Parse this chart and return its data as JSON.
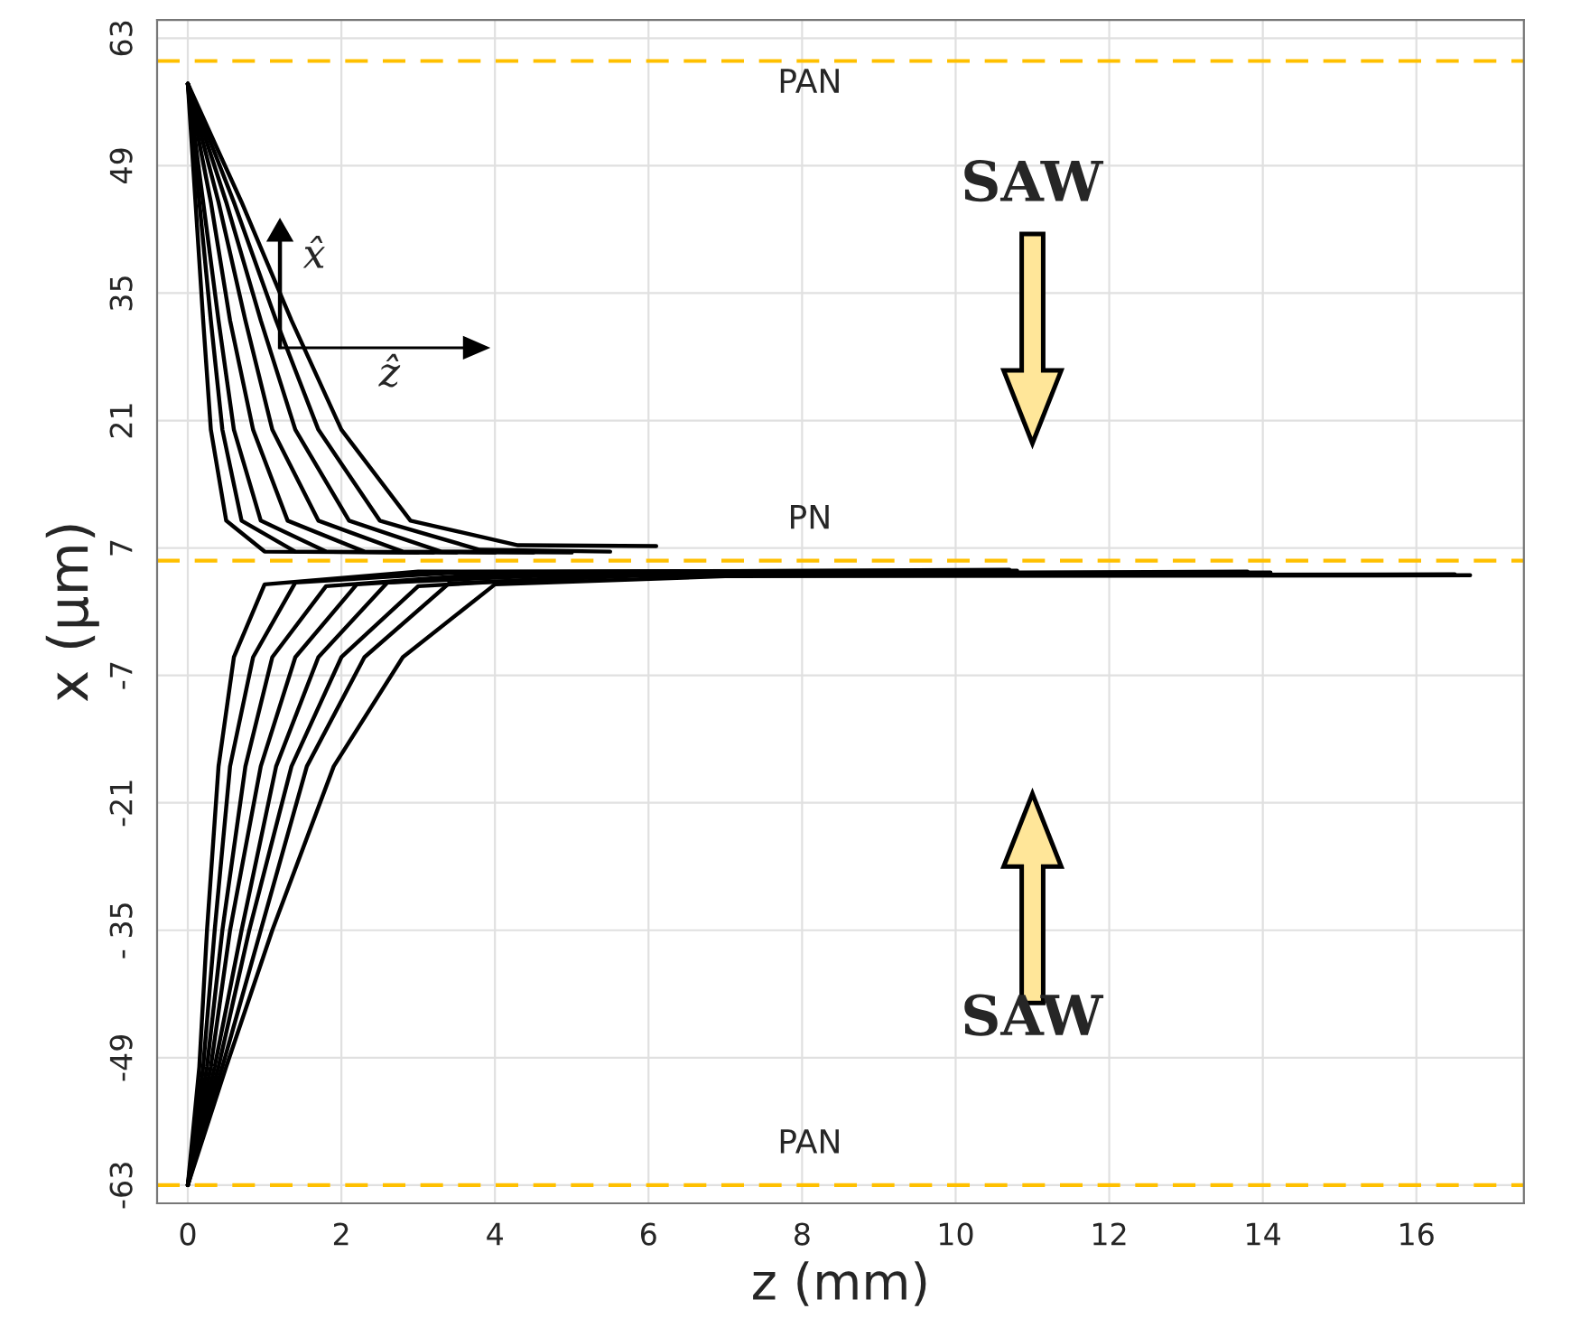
{
  "chart_data": {
    "type": "line",
    "xlabel": "z (mm)",
    "ylabel": "x (μm)",
    "xlim": [
      -0.4,
      17.4
    ],
    "ylim": [
      -65,
      65
    ],
    "xticks": [
      0,
      2,
      4,
      6,
      8,
      10,
      12,
      14,
      16
    ],
    "yticks": [
      -63,
      -49,
      {
        "value": -35,
        "label": "- 35"
      },
      -21,
      -7,
      7,
      21,
      35,
      49,
      63
    ],
    "grid": true,
    "legend": false,
    "line_style": "solid",
    "marker": "none",
    "ref_lines": [
      {
        "axis": "y",
        "value": 60.5,
        "label": "PAN",
        "color": "#ffc000",
        "line_style": "dashed"
      },
      {
        "axis": "y",
        "value": 5.6,
        "label": "PN",
        "color": "#ffc000",
        "line_style": "dashed"
      },
      {
        "axis": "y",
        "value": -63,
        "label": "PAN",
        "color": "#ffc000",
        "line_style": "dashed"
      }
    ],
    "annotations": [
      "SAW",
      "SAW",
      "x̂",
      "ẑ"
    ],
    "series": [
      {
        "color": "#000000",
        "x": [
          0,
          0.1,
          0.2,
          0.3,
          0.5,
          1.0,
          3.0
        ],
        "values": [
          58,
          45,
          32,
          20,
          10,
          6.6,
          6.5
        ]
      },
      {
        "color": "#000000",
        "x": [
          0,
          0.15,
          0.3,
          0.45,
          0.7,
          1.4,
          3.2
        ],
        "values": [
          58,
          45,
          32,
          20,
          10,
          6.6,
          6.5
        ]
      },
      {
        "color": "#000000",
        "x": [
          0,
          0.2,
          0.4,
          0.6,
          0.95,
          1.8,
          3.5
        ],
        "values": [
          58,
          45,
          32,
          20,
          10,
          6.6,
          6.5
        ]
      },
      {
        "color": "#000000",
        "x": [
          0,
          0.3,
          0.55,
          0.85,
          1.3,
          2.3,
          4.0
        ],
        "values": [
          58,
          45,
          32,
          20,
          10,
          6.6,
          6.5
        ]
      },
      {
        "color": "#000000",
        "x": [
          0,
          0.4,
          0.75,
          1.1,
          1.7,
          2.8,
          4.5
        ],
        "values": [
          58,
          45,
          32,
          20,
          10,
          6.6,
          6.5
        ]
      },
      {
        "color": "#000000",
        "x": [
          0,
          0.5,
          0.95,
          1.4,
          2.1,
          3.3,
          5.0
        ],
        "values": [
          58,
          45,
          32,
          20,
          10,
          6.6,
          6.5
        ]
      },
      {
        "color": "#000000",
        "x": [
          0,
          0.6,
          1.15,
          1.7,
          2.5,
          3.8,
          5.5
        ],
        "values": [
          58,
          45,
          32,
          20,
          10,
          6.8,
          6.6
        ]
      },
      {
        "color": "#000000",
        "x": [
          0,
          0.7,
          1.35,
          2.0,
          2.9,
          4.3,
          6.1
        ],
        "values": [
          58,
          45,
          32,
          20,
          10,
          7.3,
          7.2
        ]
      },
      {
        "color": "#000000",
        "x": [
          0,
          0.15,
          0.25,
          0.4,
          0.6,
          1.0,
          3.0,
          10.8
        ],
        "values": [
          -63,
          -50,
          -35,
          -17,
          -5,
          3,
          4.4,
          4.5
        ]
      },
      {
        "color": "#000000",
        "x": [
          0,
          0.2,
          0.35,
          0.55,
          0.85,
          1.4,
          3.5,
          10.7
        ],
        "values": [
          -63,
          -50,
          -35,
          -17,
          -5,
          3.2,
          4.3,
          4.6
        ]
      },
      {
        "color": "#000000",
        "x": [
          0,
          0.25,
          0.45,
          0.75,
          1.1,
          1.8,
          4.0,
          9.5
        ],
        "values": [
          -63,
          -50,
          -35,
          -17,
          -5,
          2.8,
          4.2,
          4.4
        ]
      },
      {
        "color": "#000000",
        "x": [
          0,
          0.3,
          0.55,
          0.95,
          1.4,
          2.2,
          4.5,
          14.1
        ],
        "values": [
          -63,
          -50,
          -35,
          -17,
          -5,
          3,
          4.2,
          4.3
        ]
      },
      {
        "color": "#000000",
        "x": [
          0,
          0.35,
          0.7,
          1.15,
          1.7,
          2.6,
          5.0,
          13.8
        ],
        "values": [
          -63,
          -50,
          -35,
          -17,
          -5,
          3.2,
          4.1,
          4.4
        ]
      },
      {
        "color": "#000000",
        "x": [
          0,
          0.4,
          0.8,
          1.35,
          2.0,
          3.0,
          5.5,
          12.5
        ],
        "values": [
          -63,
          -50,
          -35,
          -17,
          -5,
          2.8,
          4.0,
          4.2
        ]
      },
      {
        "color": "#000000",
        "x": [
          0,
          0.45,
          0.95,
          1.55,
          2.3,
          3.4,
          6.0,
          16.5
        ],
        "values": [
          -63,
          -50,
          -35,
          -17,
          -5,
          3.1,
          4.0,
          4.1
        ]
      },
      {
        "color": "#000000",
        "x": [
          0,
          0.5,
          1.1,
          1.9,
          2.8,
          4.0,
          7.0,
          16.7
        ],
        "values": [
          -63,
          -50,
          -35,
          -17,
          -5,
          3,
          3.9,
          4.0
        ]
      }
    ]
  }
}
